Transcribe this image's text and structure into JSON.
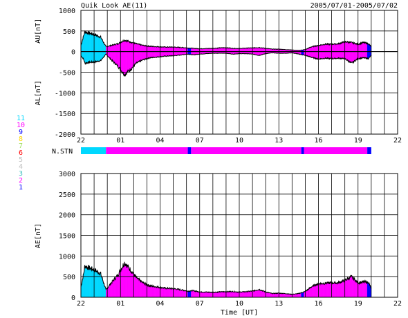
{
  "header": {
    "title": "Quik Look AE(11)",
    "date_range": "2005/07/01-2005/07/02"
  },
  "legend": {
    "title": "",
    "entries": [
      {
        "label": "11",
        "color": "#00d8ff"
      },
      {
        "label": "10",
        "color": "#ff00ff"
      },
      {
        "label": "9",
        "color": "#0000ff"
      },
      {
        "label": "8",
        "color": "#ffd700"
      },
      {
        "label": "7",
        "color": "#a0e060"
      },
      {
        "label": "6",
        "color": "#ff0000"
      },
      {
        "label": "5",
        "color": "#c0c0c0"
      },
      {
        "label": "4",
        "color": "#c0c0c0"
      },
      {
        "label": "3",
        "color": "#40c0c0"
      },
      {
        "label": "2",
        "color": "#ff00ff"
      },
      {
        "label": "1",
        "color": "#0000ff"
      }
    ]
  },
  "nstn": {
    "label": "N.STN",
    "segments": [
      {
        "start": 22.0,
        "end": 23.9,
        "stations": 11
      },
      {
        "start": 23.9,
        "end": 30.1,
        "stations": 10
      },
      {
        "start": 30.1,
        "end": 30.35,
        "stations": 9
      },
      {
        "start": 30.35,
        "end": 38.7,
        "stations": 10
      },
      {
        "start": 38.7,
        "end": 38.9,
        "stations": 9
      },
      {
        "start": 38.9,
        "end": 43.7,
        "stations": 10
      },
      {
        "start": 43.7,
        "end": 44.0,
        "stations": 9
      }
    ]
  },
  "chart_data": [
    {
      "type": "area",
      "panel": "AU/AL",
      "ylabel_top": "AU[nT]",
      "ylabel_bottom": "AL[nT]",
      "ylim": [
        -2000,
        1000
      ],
      "yticks": [
        1000,
        500,
        0,
        -500,
        -1000,
        -1500,
        -2000
      ],
      "xlim": [
        22,
        46
      ],
      "xticks": [
        22,
        25,
        28,
        31,
        34,
        37,
        40,
        43,
        46
      ],
      "xticklabels": [
        "22",
        "01",
        "04",
        "07",
        "10",
        "13",
        "16",
        "19",
        "22"
      ],
      "x_hours": [
        22.0,
        22.2,
        22.3,
        22.6,
        23.0,
        23.5,
        23.9,
        24.3,
        24.8,
        25.3,
        25.8,
        26.2,
        26.7,
        27.2,
        27.8,
        28.4,
        29.0,
        29.6,
        30.1,
        30.5,
        31.0,
        31.5,
        32.0,
        32.5,
        33.0,
        33.5,
        34.0,
        34.5,
        35.0,
        35.5,
        36.0,
        36.5,
        37.0,
        37.5,
        38.0,
        38.5,
        39.0,
        39.5,
        40.0,
        40.5,
        41.0,
        41.5,
        42.0,
        42.5,
        43.0,
        43.4,
        43.8,
        44.0
      ],
      "series": [
        {
          "name": "AU",
          "values": [
            150,
            380,
            480,
            450,
            420,
            350,
            120,
            150,
            190,
            280,
            230,
            190,
            150,
            130,
            120,
            110,
            110,
            100,
            90,
            80,
            70,
            75,
            80,
            90,
            95,
            80,
            75,
            85,
            90,
            100,
            80,
            60,
            60,
            50,
            40,
            30,
            50,
            120,
            150,
            180,
            180,
            190,
            240,
            220,
            180,
            220,
            190,
            120
          ]
        },
        {
          "name": "AL",
          "values": [
            -100,
            -180,
            -280,
            -260,
            -250,
            -220,
            -60,
            -200,
            -350,
            -560,
            -420,
            -280,
            -200,
            -150,
            -130,
            -110,
            -100,
            -80,
            -60,
            -80,
            -60,
            -50,
            -40,
            -40,
            -40,
            -60,
            -50,
            -50,
            -60,
            -90,
            -50,
            -30,
            -40,
            -40,
            -30,
            -60,
            -90,
            -140,
            -180,
            -160,
            -170,
            -160,
            -170,
            -280,
            -170,
            -150,
            -170,
            -90
          ]
        }
      ]
    },
    {
      "type": "area",
      "panel": "AE",
      "ylabel": "AE[nT]",
      "xlabel": "Time [UT]",
      "ylim": [
        0,
        3000
      ],
      "yticks": [
        3000,
        2500,
        2000,
        1500,
        1000,
        500,
        0
      ],
      "xlim": [
        22,
        46
      ],
      "xticks": [
        22,
        25,
        28,
        31,
        34,
        37,
        40,
        43,
        46
      ],
      "xticklabels": [
        "22",
        "01",
        "04",
        "07",
        "10",
        "13",
        "16",
        "19",
        "22"
      ],
      "x_hours": [
        22.0,
        22.2,
        22.3,
        22.6,
        23.0,
        23.5,
        23.9,
        24.3,
        24.8,
        25.3,
        25.8,
        26.2,
        26.7,
        27.2,
        27.8,
        28.4,
        29.0,
        29.6,
        30.1,
        30.5,
        31.0,
        31.5,
        32.0,
        32.5,
        33.0,
        33.5,
        34.0,
        34.5,
        35.0,
        35.5,
        36.0,
        36.5,
        37.0,
        37.5,
        38.0,
        38.5,
        39.0,
        39.5,
        40.0,
        40.5,
        41.0,
        41.5,
        42.0,
        42.5,
        43.0,
        43.4,
        43.8,
        44.0
      ],
      "series": [
        {
          "name": "AE",
          "values": [
            250,
            560,
            760,
            710,
            670,
            570,
            180,
            350,
            540,
            840,
            650,
            470,
            350,
            280,
            250,
            220,
            210,
            180,
            150,
            160,
            130,
            125,
            120,
            130,
            135,
            140,
            125,
            135,
            150,
            190,
            130,
            90,
            100,
            90,
            70,
            90,
            140,
            260,
            330,
            340,
            350,
            350,
            410,
            500,
            350,
            370,
            360,
            210
          ]
        }
      ]
    }
  ]
}
